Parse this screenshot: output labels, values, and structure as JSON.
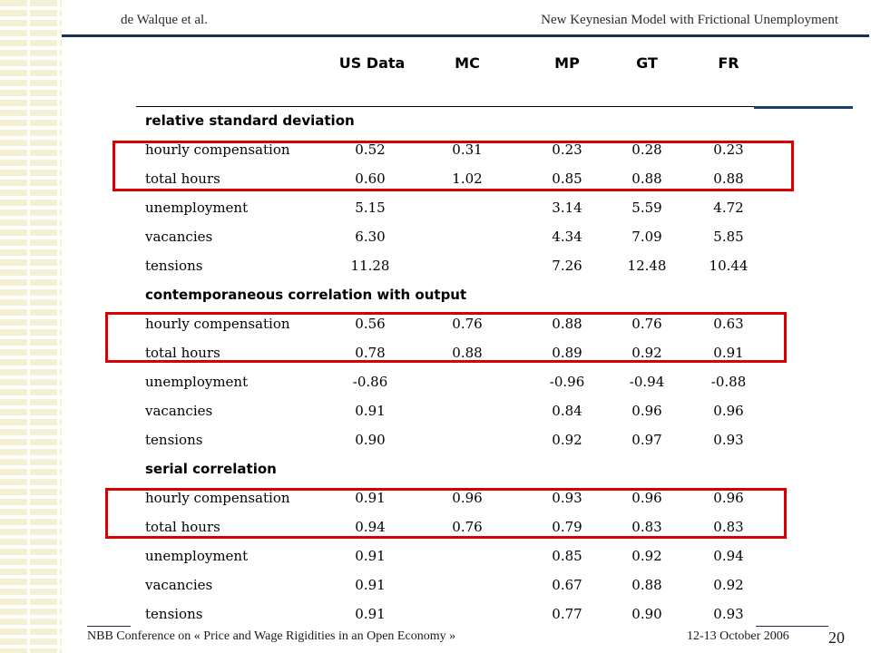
{
  "header": {
    "author": "de Walque et al.",
    "title": "New Keynesian Model  with Frictional Unemployment"
  },
  "table": {
    "columns": [
      "US Data",
      "MC",
      "MP",
      "GT",
      "FR"
    ],
    "sections": [
      {
        "label": "relative standard deviation",
        "rows": [
          {
            "label": "hourly compensation",
            "values": [
              "0.52",
              "0.31",
              "0.23",
              "0.28",
              "0.23"
            ]
          },
          {
            "label": "total hours",
            "values": [
              "0.60",
              "1.02",
              "0.85",
              "0.88",
              "0.88"
            ]
          },
          {
            "label": "unemployment",
            "values": [
              "5.15",
              "",
              "3.14",
              "5.59",
              "4.72"
            ]
          },
          {
            "label": "vacancies",
            "values": [
              "6.30",
              "",
              "4.34",
              "7.09",
              "5.85"
            ]
          },
          {
            "label": "tensions",
            "values": [
              "11.28",
              "",
              "7.26",
              "12.48",
              "10.44"
            ]
          }
        ]
      },
      {
        "label": "contemporaneous correlation with output",
        "rows": [
          {
            "label": "hourly compensation",
            "values": [
              "0.56",
              "0.76",
              "0.88",
              "0.76",
              "0.63"
            ]
          },
          {
            "label": "total hours",
            "values": [
              "0.78",
              "0.88",
              "0.89",
              "0.92",
              "0.91"
            ]
          },
          {
            "label": "unemployment",
            "values": [
              "-0.86",
              "",
              "-0.96",
              "-0.94",
              "-0.88"
            ]
          },
          {
            "label": "vacancies",
            "values": [
              "0.91",
              "",
              "0.84",
              "0.96",
              "0.96"
            ]
          },
          {
            "label": "tensions",
            "values": [
              "0.90",
              "",
              "0.92",
              "0.97",
              "0.93"
            ]
          }
        ]
      },
      {
        "label": "serial correlation",
        "rows": [
          {
            "label": "hourly compensation",
            "values": [
              "0.91",
              "0.96",
              "0.93",
              "0.96",
              "0.96"
            ]
          },
          {
            "label": "total hours",
            "values": [
              "0.94",
              "0.76",
              "0.79",
              "0.83",
              "0.83"
            ]
          },
          {
            "label": "unemployment",
            "values": [
              "0.91",
              "",
              "0.85",
              "0.92",
              "0.94"
            ]
          },
          {
            "label": "vacancies",
            "values": [
              "0.91",
              "",
              "0.67",
              "0.88",
              "0.92"
            ]
          },
          {
            "label": "tensions",
            "values": [
              "0.91",
              "",
              "0.77",
              "0.90",
              "0.93"
            ]
          }
        ]
      }
    ]
  },
  "footer": {
    "conference": "NBB Conference on « Price and Wage Rigidities in an Open Economy »",
    "date": "12-13 October 2006",
    "page_number": "20"
  },
  "colors": {
    "accent_navy": "#1b2e5a",
    "highlight_red": "#d60000",
    "stripe": "#f3f0d3"
  }
}
